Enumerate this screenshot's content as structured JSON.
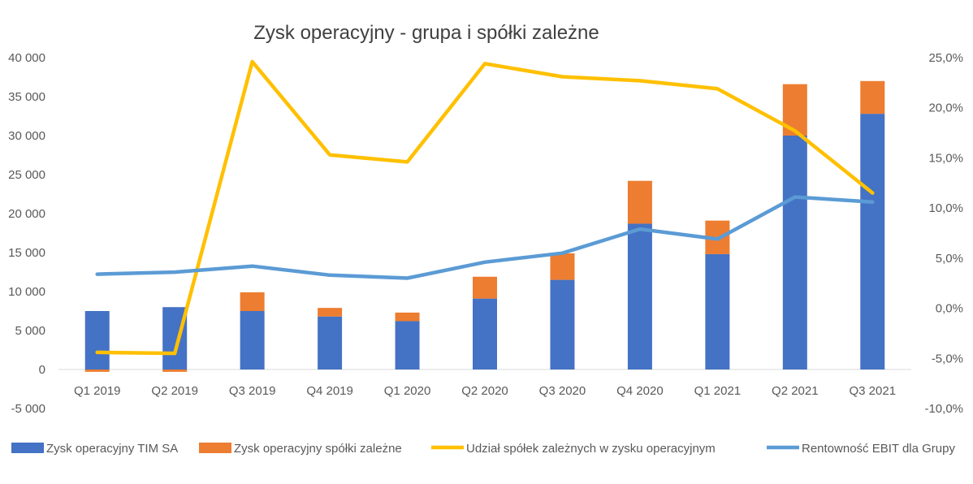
{
  "chart_data": {
    "type": "bar",
    "title": "Zysk operacyjny - grupa i spółki zależne",
    "categories": [
      "Q1 2019",
      "Q2 2019",
      "Q3 2019",
      "Q4 2019",
      "Q1 2020",
      "Q2 2020",
      "Q3 2020",
      "Q4 2020",
      "Q1 2021",
      "Q2 2021",
      "Q3 2021"
    ],
    "stacked": true,
    "series": [
      {
        "name": "Zysk operacyjny TIM SA",
        "kind": "bar",
        "axis": "left",
        "color": "#4472c4",
        "values": [
          7500,
          8000,
          7500,
          6800,
          6200,
          9100,
          11500,
          18700,
          14800,
          30000,
          32800
        ]
      },
      {
        "name": "Zysk operacyjny spółki zależne",
        "kind": "bar",
        "axis": "left",
        "color": "#ed7d31",
        "values": [
          -300,
          -300,
          2400,
          1100,
          1100,
          2800,
          3400,
          5500,
          4300,
          6600,
          4200
        ]
      },
      {
        "name": "Udział spółek zależnych w zysku operacyjnym",
        "kind": "line",
        "axis": "right",
        "color": "#ffc000",
        "values": [
          -4.4,
          -4.5,
          24.6,
          15.3,
          14.6,
          24.4,
          23.1,
          22.7,
          21.9,
          17.7,
          11.5
        ]
      },
      {
        "name": "Rentowność EBIT dla Grupy",
        "kind": "line",
        "axis": "right",
        "color": "#5b9bd5",
        "values": [
          3.4,
          3.6,
          4.2,
          3.3,
          3.0,
          4.6,
          5.5,
          7.9,
          6.9,
          11.1,
          10.6
        ]
      }
    ],
    "y_left": {
      "min": -5000,
      "max": 40000,
      "step": 5000,
      "tick_labels": [
        "-5 000",
        "0",
        "5 000",
        "10 000",
        "15 000",
        "20 000",
        "25 000",
        "30 000",
        "35 000",
        "40 000"
      ]
    },
    "y_right": {
      "min": -10,
      "max": 25,
      "step": 5,
      "tick_labels": [
        "-10,0%",
        "-5,0%",
        "0,0%",
        "5,0%",
        "10,0%",
        "15,0%",
        "20,0%",
        "25,0%"
      ]
    },
    "grid": false,
    "legend": "bottom"
  }
}
